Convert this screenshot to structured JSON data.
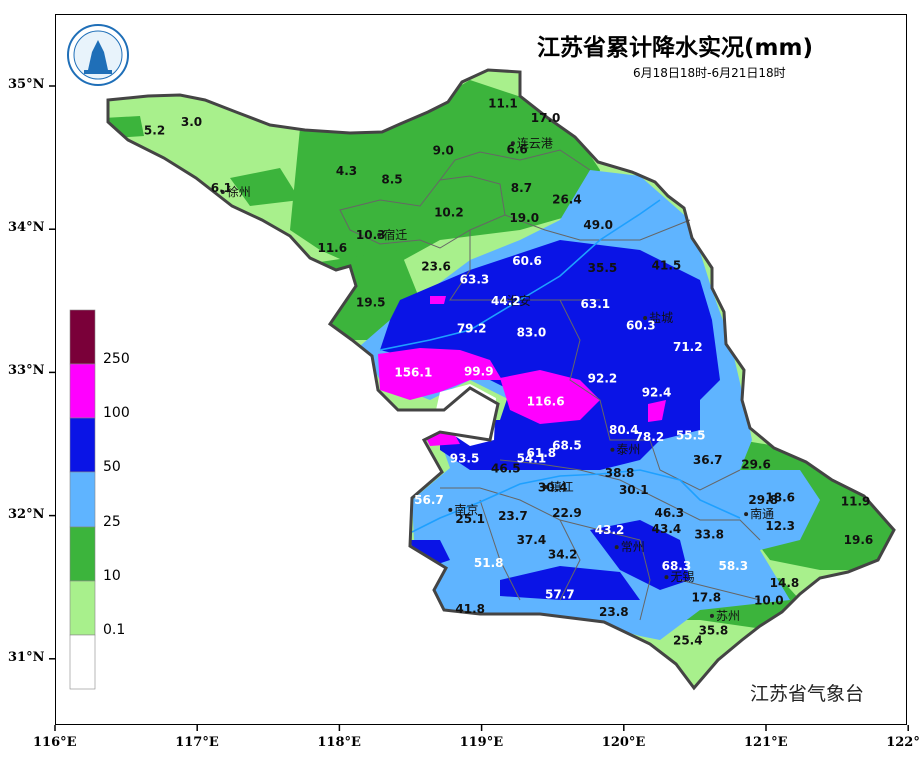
{
  "title": "江苏省累计降水实况(mm)",
  "subtitle": "6月18日18时-6月21日18时",
  "agency": "江苏省气象台",
  "x_axis_labels": [
    "116°E",
    "117°E",
    "118°E",
    "119°E",
    "120°E",
    "121°E",
    "122°E"
  ],
  "y_axis_labels": [
    "35°N",
    "34°N",
    "33°N",
    "32°N",
    "31°N"
  ],
  "legend": {
    "labels": [
      "250",
      "100",
      "50",
      "25",
      "10",
      "0.1"
    ],
    "colors": [
      "#7a0039",
      "#ff00ff",
      "#0a14e6",
      "#5fb4ff",
      "#3cb43c",
      "#a8f08c",
      "#ffffff"
    ]
  },
  "cities": [
    {
      "name": "连云港",
      "lon": 119.22,
      "lat": 34.6
    },
    {
      "name": "徐州",
      "lon": 117.18,
      "lat": 34.26
    },
    {
      "name": "宿迁",
      "lon": 118.28,
      "lat": 33.96
    },
    {
      "name": "淮安",
      "lon": 119.15,
      "lat": 33.5
    },
    {
      "name": "盐城",
      "lon": 120.15,
      "lat": 33.38
    },
    {
      "name": "泰州",
      "lon": 119.92,
      "lat": 32.46
    },
    {
      "name": "南京",
      "lon": 118.78,
      "lat": 32.04
    },
    {
      "name": "镇江",
      "lon": 119.45,
      "lat": 32.2
    },
    {
      "name": "南通",
      "lon": 120.86,
      "lat": 32.01
    },
    {
      "name": "常州",
      "lon": 119.95,
      "lat": 31.78
    },
    {
      "name": "无锡",
      "lon": 120.3,
      "lat": 31.57
    },
    {
      "name": "苏州",
      "lon": 120.62,
      "lat": 31.3
    }
  ],
  "values": [
    {
      "v": "11.1",
      "lon": 119.15,
      "lat": 34.85
    },
    {
      "v": "17.0",
      "lon": 119.45,
      "lat": 34.75
    },
    {
      "v": "5.2",
      "lon": 116.7,
      "lat": 34.66
    },
    {
      "v": "3.0",
      "lon": 116.96,
      "lat": 34.72
    },
    {
      "v": "6.6",
      "lon": 119.25,
      "lat": 34.53
    },
    {
      "v": "9.0",
      "lon": 118.73,
      "lat": 34.52
    },
    {
      "v": "4.3",
      "lon": 118.05,
      "lat": 34.38
    },
    {
      "v": "8.5",
      "lon": 118.37,
      "lat": 34.32
    },
    {
      "v": "6.1",
      "lon": 117.17,
      "lat": 34.26
    },
    {
      "v": "8.7",
      "lon": 119.28,
      "lat": 34.26
    },
    {
      "v": "26.4",
      "lon": 119.6,
      "lat": 34.18
    },
    {
      "v": "10.2",
      "lon": 118.77,
      "lat": 34.09
    },
    {
      "v": "19.0",
      "lon": 119.3,
      "lat": 34.05
    },
    {
      "v": "10.3",
      "lon": 118.22,
      "lat": 33.93
    },
    {
      "v": "49.0",
      "lon": 119.82,
      "lat": 34.0
    },
    {
      "v": "11.6",
      "lon": 117.95,
      "lat": 33.84
    },
    {
      "v": "23.6",
      "lon": 118.68,
      "lat": 33.71
    },
    {
      "v": "60.6",
      "lon": 119.32,
      "lat": 33.75
    },
    {
      "v": "35.5",
      "lon": 119.85,
      "lat": 33.7
    },
    {
      "v": "41.5",
      "lon": 120.3,
      "lat": 33.72
    },
    {
      "v": "63.3",
      "lon": 118.95,
      "lat": 33.62
    },
    {
      "v": "44.2",
      "lon": 119.17,
      "lat": 33.47
    },
    {
      "v": "63.1",
      "lon": 119.8,
      "lat": 33.45
    },
    {
      "v": "19.5",
      "lon": 118.22,
      "lat": 33.46
    },
    {
      "v": "79.2",
      "lon": 118.93,
      "lat": 33.28
    },
    {
      "v": "83.0",
      "lon": 119.35,
      "lat": 33.25
    },
    {
      "v": "60.3",
      "lon": 120.12,
      "lat": 33.3
    },
    {
      "v": "71.2",
      "lon": 120.45,
      "lat": 33.15
    },
    {
      "v": "156.1",
      "lon": 118.52,
      "lat": 32.97
    },
    {
      "v": "99.9",
      "lon": 118.98,
      "lat": 32.98
    },
    {
      "v": "92.2",
      "lon": 119.85,
      "lat": 32.93
    },
    {
      "v": "92.4",
      "lon": 120.23,
      "lat": 32.83
    },
    {
      "v": "116.6",
      "lon": 119.45,
      "lat": 32.77
    },
    {
      "v": "80.4",
      "lon": 120.0,
      "lat": 32.57
    },
    {
      "v": "78.2",
      "lon": 120.18,
      "lat": 32.52
    },
    {
      "v": "55.5",
      "lon": 120.47,
      "lat": 32.53
    },
    {
      "v": "68.5",
      "lon": 119.6,
      "lat": 32.46
    },
    {
      "v": "61.8",
      "lon": 119.42,
      "lat": 32.41
    },
    {
      "v": "93.5",
      "lon": 118.88,
      "lat": 32.37
    },
    {
      "v": "54.1",
      "lon": 119.35,
      "lat": 32.37
    },
    {
      "v": "46.5",
      "lon": 119.17,
      "lat": 32.3
    },
    {
      "v": "36.7",
      "lon": 120.59,
      "lat": 32.36
    },
    {
      "v": "38.8",
      "lon": 119.97,
      "lat": 32.27
    },
    {
      "v": "29.6",
      "lon": 120.93,
      "lat": 32.33
    },
    {
      "v": "30.4",
      "lon": 119.5,
      "lat": 32.17
    },
    {
      "v": "30.1",
      "lon": 120.07,
      "lat": 32.15
    },
    {
      "v": "56.7",
      "lon": 118.63,
      "lat": 32.08
    },
    {
      "v": "29.8",
      "lon": 120.98,
      "lat": 32.08
    },
    {
      "v": "18.6",
      "lon": 121.1,
      "lat": 32.1
    },
    {
      "v": "11.9",
      "lon": 121.63,
      "lat": 32.07
    },
    {
      "v": "46.3",
      "lon": 120.32,
      "lat": 31.99
    },
    {
      "v": "22.9",
      "lon": 119.6,
      "lat": 31.99
    },
    {
      "v": "23.7",
      "lon": 119.22,
      "lat": 31.97
    },
    {
      "v": "25.1",
      "lon": 118.92,
      "lat": 31.95
    },
    {
      "v": "12.3",
      "lon": 121.1,
      "lat": 31.9
    },
    {
      "v": "43.2",
      "lon": 119.9,
      "lat": 31.87
    },
    {
      "v": "43.4",
      "lon": 120.3,
      "lat": 31.88
    },
    {
      "v": "33.8",
      "lon": 120.6,
      "lat": 31.84
    },
    {
      "v": "37.4",
      "lon": 119.35,
      "lat": 31.8
    },
    {
      "v": "19.6",
      "lon": 121.65,
      "lat": 31.8
    },
    {
      "v": "34.2",
      "lon": 119.57,
      "lat": 31.7
    },
    {
      "v": "51.8",
      "lon": 119.05,
      "lat": 31.64
    },
    {
      "v": "58.3",
      "lon": 120.77,
      "lat": 31.62
    },
    {
      "v": "68.3",
      "lon": 120.37,
      "lat": 31.62
    },
    {
      "v": "14.8",
      "lon": 121.13,
      "lat": 31.5
    },
    {
      "v": "57.7",
      "lon": 119.55,
      "lat": 31.42
    },
    {
      "v": "17.8",
      "lon": 120.58,
      "lat": 31.4
    },
    {
      "v": "10.0",
      "lon": 121.02,
      "lat": 31.38
    },
    {
      "v": "41.8",
      "lon": 118.92,
      "lat": 31.32
    },
    {
      "v": "23.8",
      "lon": 119.93,
      "lat": 31.3
    },
    {
      "v": "35.8",
      "lon": 120.63,
      "lat": 31.17
    },
    {
      "v": "25.4",
      "lon": 120.45,
      "lat": 31.1
    }
  ]
}
